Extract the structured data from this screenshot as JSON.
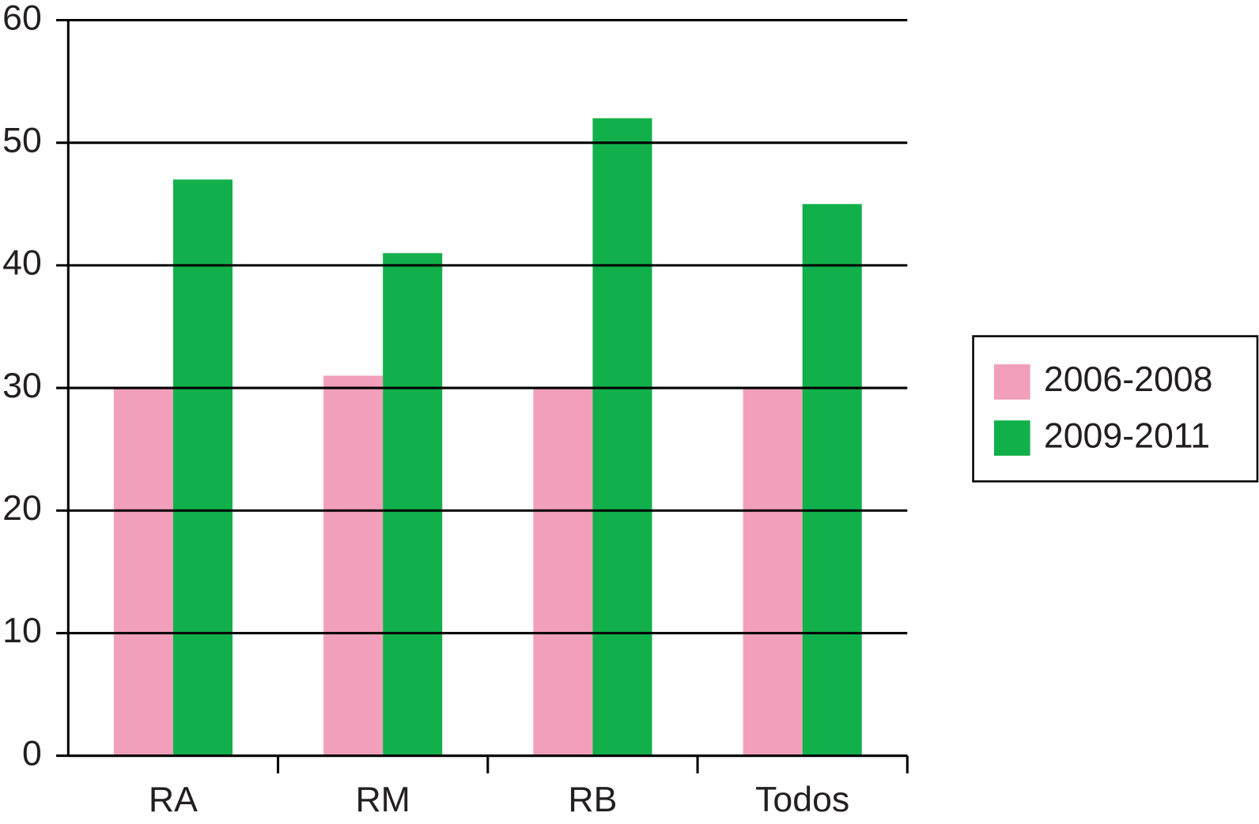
{
  "chart_data": {
    "type": "bar",
    "categories": [
      "RA",
      "RM",
      "RB",
      "Todos"
    ],
    "series": [
      {
        "name": "2006-2008",
        "color": "#f29fbc",
        "values": [
          30,
          31,
          30,
          30
        ]
      },
      {
        "name": "2009-2011",
        "color": "#12b04a",
        "values": [
          47,
          41,
          52,
          45
        ]
      }
    ],
    "ylim": [
      0,
      60
    ],
    "yticks": [
      0,
      10,
      20,
      30,
      40,
      50,
      60
    ],
    "grid": true,
    "legend": "right"
  }
}
